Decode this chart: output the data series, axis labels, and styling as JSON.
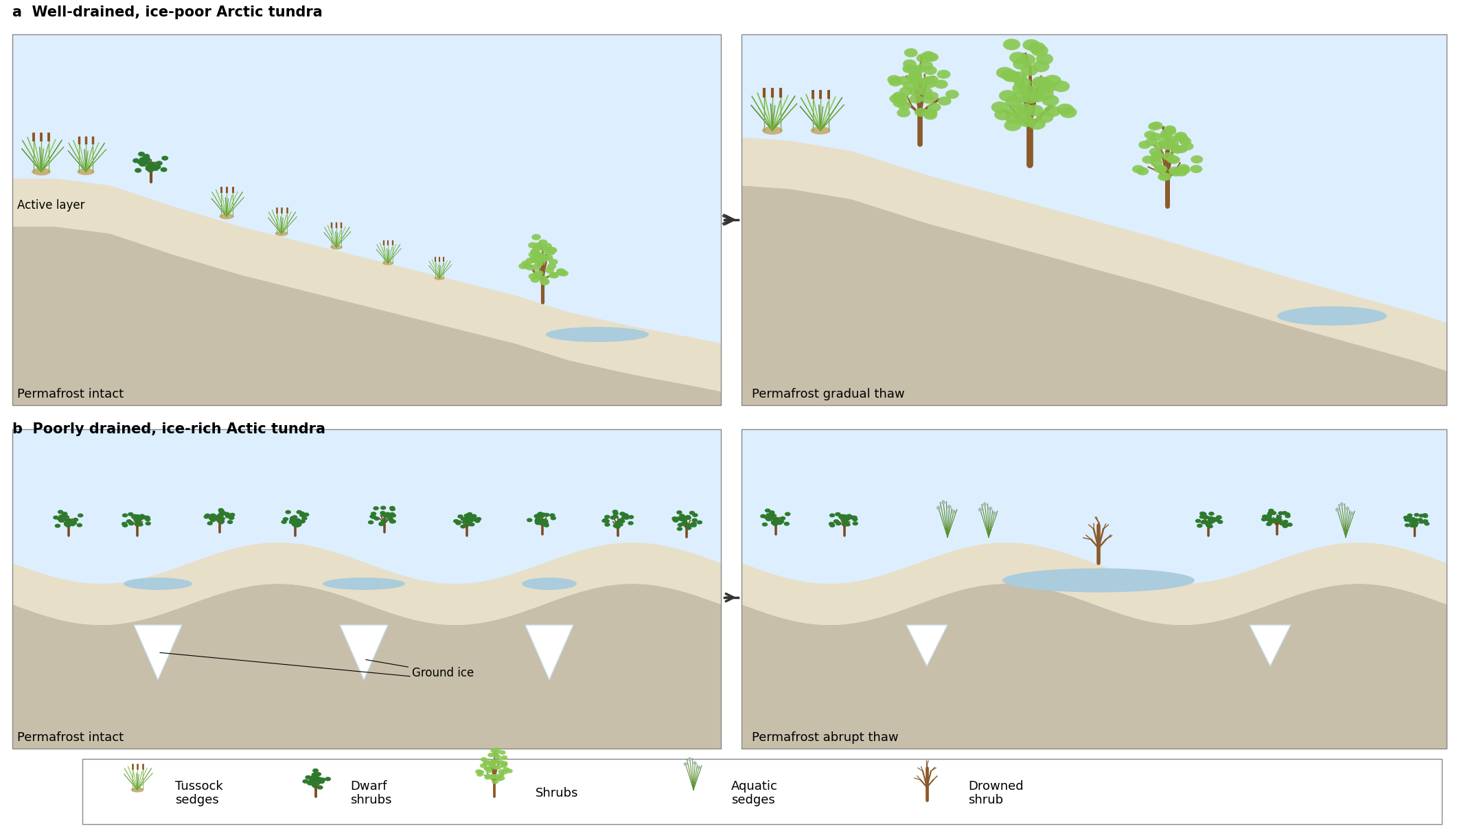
{
  "title_a": "a  Well-drained, ice-poor Arctic tundra",
  "title_b": "b  Poorly drained, ice-rich Actic tundra",
  "label_active_layer": "Active layer",
  "label_permafrost_intact": "Permafrost intact",
  "label_permafrost_gradual": "Permafrost gradual thaw",
  "label_permafrost_abrupt": "Permafrost abrupt thaw",
  "label_ground_ice": "Ground ice",
  "legend_labels": [
    "Tussock\nsedges",
    "Dwarf\nshrubs",
    "Shrubs",
    "Aquatic\nsedges",
    "Drowned\nshrub"
  ],
  "bg_color": "#ffffff",
  "sky_color": "#ddeeff",
  "permafrost_color": "#c8bfaa",
  "active_layer_color": "#e8dfc8",
  "water_color": "#aaccdd",
  "ice_color": "#ddeeff",
  "ice_wedge_color": "#c8dce8",
  "panel_bg": "#f0f6fa"
}
